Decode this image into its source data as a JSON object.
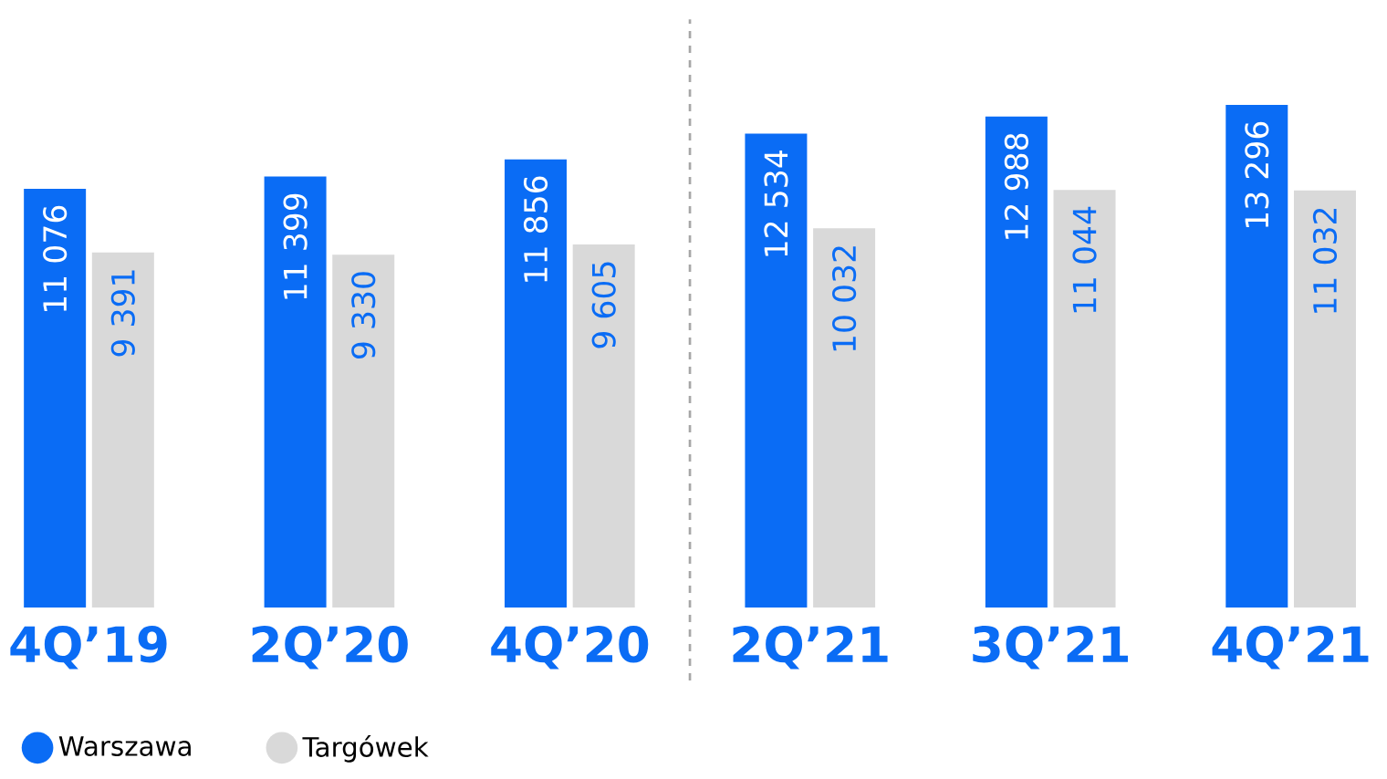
{
  "chart_data": {
    "type": "bar",
    "categories": [
      "4Q’19",
      "2Q’20",
      "4Q’20",
      "2Q’21",
      "3Q’21",
      "4Q’21"
    ],
    "series": [
      {
        "name": "Warszawa",
        "color": "#0a6cf5",
        "values": [
          11076,
          11399,
          11856,
          12534,
          12988,
          13296
        ],
        "value_labels": [
          "11 076",
          "11 399",
          "11 856",
          "12 534",
          "12 988",
          "13 296"
        ]
      },
      {
        "name": "Targówek",
        "color": "#d9d9d9",
        "values": [
          9391,
          9330,
          9605,
          10032,
          11044,
          11032
        ],
        "value_labels": [
          "9 391",
          "9 330",
          "9 605",
          "10 032",
          "11 044",
          "11 032"
        ]
      }
    ],
    "legend": "bottom left"
  }
}
